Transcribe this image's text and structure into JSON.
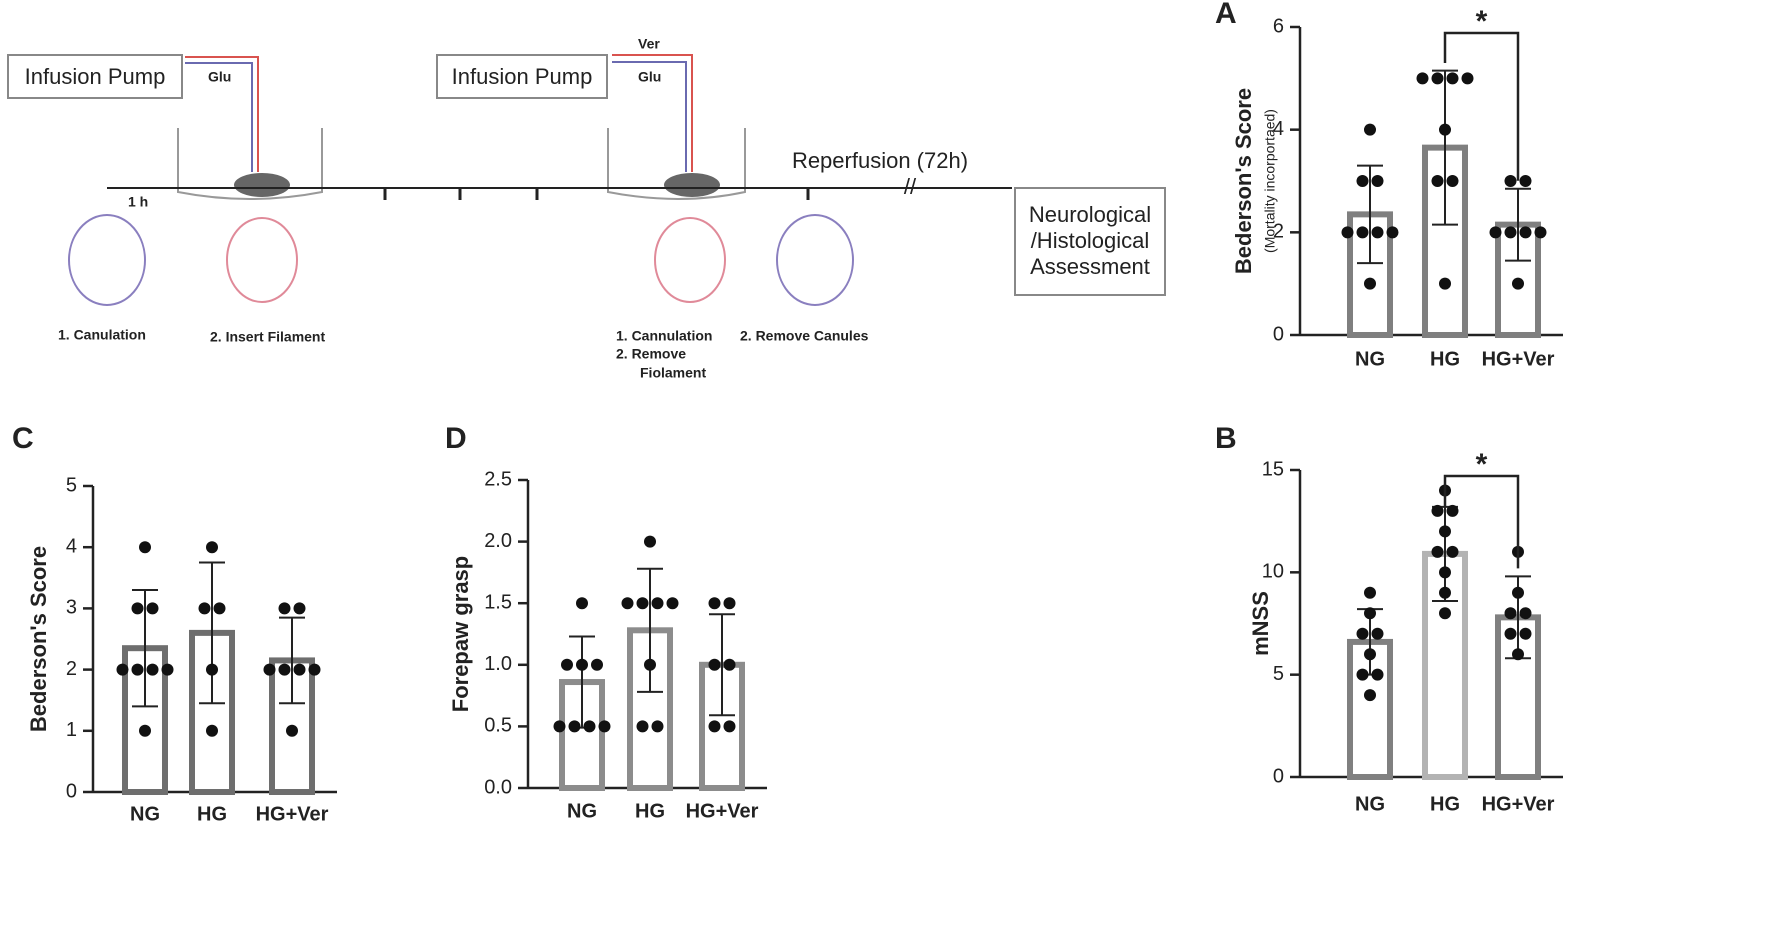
{
  "diagram": {
    "pump_1": "Infusion Pump",
    "tube_1": "Glu",
    "pump_2": "Infusion Pump",
    "tube_2a": "Ver",
    "tube_2b": "Glu",
    "time_1": "1 h",
    "reperfusion": "Reperfusion (72h)",
    "break": "//",
    "assessment": [
      "Neurological",
      "/Histological",
      "Assessment"
    ],
    "step_1": "1.  Canulation",
    "step_2": "2.  Insert Filament",
    "step_3": [
      "1.  Cannulation",
      "2.  Remove",
      "Fiolament"
    ],
    "step_4": "2. Remove Canules"
  },
  "chart_data": [
    {
      "type": "bar",
      "panel": "A",
      "ylabel": "Bederson's Score",
      "ysublabel": "(Mortality incorportaed)",
      "annotation": "*",
      "categories": [
        "NG",
        "HG",
        "HG+Ver"
      ],
      "values": [
        2.35,
        3.65,
        2.15
      ],
      "errors": [
        0.95,
        1.5,
        0.7
      ],
      "points": [
        [
          4,
          3,
          3,
          2,
          2,
          2,
          2,
          1
        ],
        [
          5,
          5,
          5,
          5,
          4,
          3,
          3,
          1
        ],
        [
          3,
          3,
          2,
          2,
          2,
          2,
          1
        ]
      ],
      "colors": [
        "#7f7f7f",
        "#7f7f7f",
        "#7f7f7f"
      ],
      "ylim": [
        0,
        6
      ],
      "yticks": [
        0,
        2,
        4,
        6
      ]
    },
    {
      "type": "bar",
      "panel": "B",
      "ylabel": "mNSS",
      "annotation": "*",
      "categories": [
        "NG",
        "HG",
        "HG+Ver"
      ],
      "values": [
        6.6,
        10.9,
        7.8
      ],
      "errors": [
        1.6,
        2.3,
        2.0
      ],
      "points": [
        [
          9,
          8,
          7,
          7,
          6,
          5,
          5,
          4
        ],
        [
          14,
          13,
          13,
          12,
          11,
          11,
          10,
          9,
          8
        ],
        [
          11,
          9,
          8,
          8,
          7,
          7,
          6
        ]
      ],
      "colors": [
        "#808080",
        "#b3b3b3",
        "#808080"
      ],
      "ylim": [
        0,
        15
      ],
      "yticks": [
        0,
        5,
        10,
        15
      ]
    },
    {
      "type": "bar",
      "panel": "C",
      "ylabel": "Bederson's Score",
      "categories": [
        "NG",
        "HG",
        "HG+Ver"
      ],
      "values": [
        2.35,
        2.6,
        2.15
      ],
      "errors": [
        0.95,
        1.15,
        0.7
      ],
      "points": [
        [
          4,
          3,
          3,
          2,
          2,
          2,
          2,
          1
        ],
        [
          4,
          3,
          3,
          2,
          1
        ],
        [
          3,
          3,
          2,
          2,
          2,
          2,
          1
        ]
      ],
      "colors": [
        "#6e6e6e",
        "#6e6e6e",
        "#6e6e6e"
      ],
      "ylim": [
        0,
        5
      ],
      "yticks": [
        0,
        1,
        2,
        3,
        4,
        5
      ]
    },
    {
      "type": "bar",
      "panel": "D",
      "ylabel": "Forepaw grasp",
      "categories": [
        "NG",
        "HG",
        "HG+Ver"
      ],
      "values": [
        0.86,
        1.28,
        1.0
      ],
      "errors": [
        0.37,
        0.5,
        0.41
      ],
      "points": [
        [
          1.5,
          1,
          1,
          1,
          0.5,
          0.5,
          0.5,
          0.5
        ],
        [
          2,
          1.5,
          1.5,
          1.5,
          1.5,
          1,
          0.5,
          0.5
        ],
        [
          1.5,
          1.5,
          1,
          1,
          0.5,
          0.5
        ]
      ],
      "colors": [
        "#8c8c8c",
        "#8c8c8c",
        "#8c8c8c"
      ],
      "ylim": [
        0,
        2.5
      ],
      "yticks": [
        {
          "value": 0,
          "label": "0.0"
        },
        0.5,
        {
          "value": 1,
          "label": "1.0"
        },
        1.5,
        {
          "value": 2,
          "label": "2.0"
        },
        2.5
      ]
    }
  ]
}
